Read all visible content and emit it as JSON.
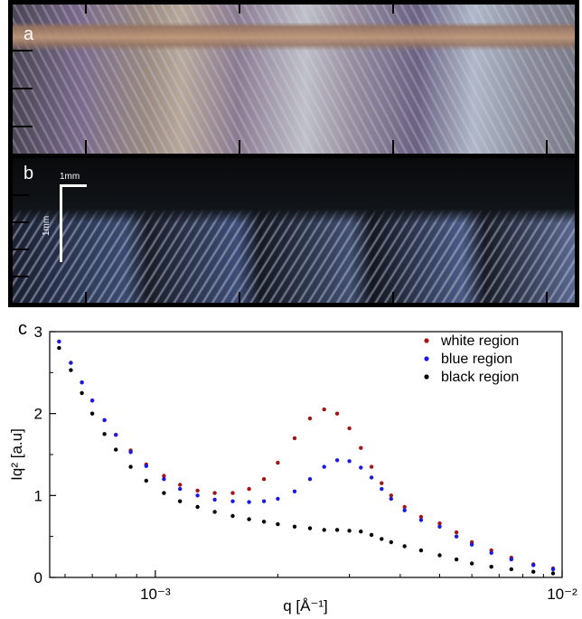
{
  "panel_a": {
    "label": "a"
  },
  "panel_b": {
    "label": "b",
    "scale_horizontal": "1mm",
    "scale_vertical": "1mm"
  },
  "panel_c": {
    "label": "c"
  },
  "chart_data": {
    "type": "scatter",
    "title": "",
    "xlabel": "q [Å⁻¹]",
    "ylabel": "Iq² [a.u]",
    "x_scale": "log",
    "xlim": [
      0.00055,
      0.01
    ],
    "ylim": [
      0,
      3
    ],
    "x_ticks": [
      0.001,
      0.01
    ],
    "x_tick_labels": [
      "10⁻³",
      "10⁻²"
    ],
    "y_ticks": [
      0,
      1,
      2,
      3
    ],
    "y_tick_labels": [
      "0",
      "1",
      "2",
      "3"
    ],
    "grid": false,
    "legend_position": "top-right",
    "x": [
      0.00058,
      0.00062,
      0.00066,
      0.0007,
      0.00075,
      0.0008,
      0.00087,
      0.00095,
      0.00105,
      0.00115,
      0.00127,
      0.0014,
      0.00155,
      0.0017,
      0.00185,
      0.002,
      0.0022,
      0.0024,
      0.0026,
      0.0028,
      0.003,
      0.0032,
      0.0034,
      0.0036,
      0.0038,
      0.0041,
      0.0045,
      0.005,
      0.0055,
      0.006,
      0.0067,
      0.0075,
      0.0085,
      0.0095
    ],
    "series": [
      {
        "name": "white region",
        "color": "#a31515",
        "values": [
          2.88,
          2.62,
          2.38,
          2.16,
          1.92,
          1.74,
          1.55,
          1.38,
          1.24,
          1.13,
          1.06,
          1.03,
          1.03,
          1.08,
          1.2,
          1.4,
          1.7,
          1.94,
          2.05,
          2.0,
          1.82,
          1.58,
          1.35,
          1.15,
          1.0,
          0.86,
          0.74,
          0.66,
          0.55,
          0.43,
          0.33,
          0.24,
          0.16,
          0.11
        ]
      },
      {
        "name": "blue region",
        "color": "#1a1ae6",
        "values": [
          2.88,
          2.62,
          2.38,
          2.16,
          1.92,
          1.74,
          1.53,
          1.36,
          1.2,
          1.08,
          1.0,
          0.95,
          0.93,
          0.92,
          0.93,
          0.96,
          1.05,
          1.2,
          1.35,
          1.43,
          1.42,
          1.34,
          1.22,
          1.08,
          0.96,
          0.82,
          0.7,
          0.62,
          0.5,
          0.4,
          0.3,
          0.22,
          0.15,
          0.1
        ]
      },
      {
        "name": "black region",
        "color": "#000000",
        "values": [
          2.8,
          2.53,
          2.25,
          2.0,
          1.75,
          1.56,
          1.35,
          1.18,
          1.03,
          0.93,
          0.86,
          0.8,
          0.75,
          0.71,
          0.68,
          0.65,
          0.62,
          0.6,
          0.58,
          0.58,
          0.57,
          0.56,
          0.52,
          0.47,
          0.43,
          0.38,
          0.33,
          0.27,
          0.22,
          0.17,
          0.13,
          0.1,
          0.07,
          0.05
        ]
      }
    ]
  }
}
